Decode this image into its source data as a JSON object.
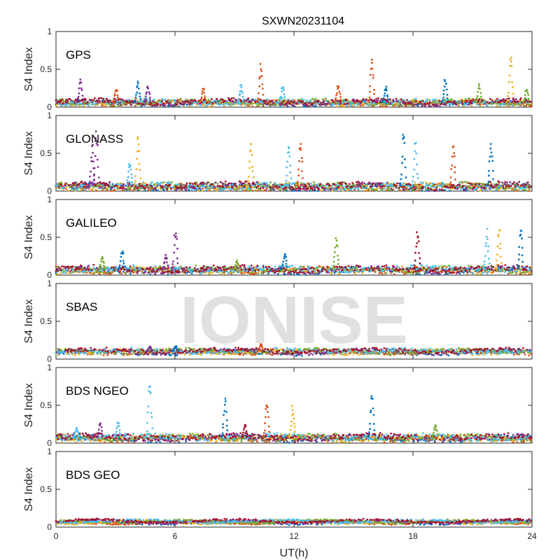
{
  "chart_data": {
    "type": "scatter",
    "title": "SXWN20231104",
    "xlabel": "UT(h)",
    "ylabel": "S4 Index",
    "xlim": [
      0,
      24
    ],
    "ylim": [
      0,
      1
    ],
    "xticks": [
      "0",
      "6",
      "12",
      "18",
      "24"
    ],
    "yticks": [
      "0",
      "0.5",
      "1"
    ],
    "grid": false,
    "watermark": "IONISE",
    "colors": [
      "#0072BD",
      "#D95319",
      "#EDB120",
      "#7E2F8E",
      "#77AC30",
      "#4DBEEE",
      "#A2142F"
    ],
    "panels": [
      {
        "label": "GPS",
        "baseline": 0.06,
        "noise": 0.03,
        "spikes": [
          {
            "x": 1.2,
            "peak": 0.38,
            "color": "#7E2F8E"
          },
          {
            "x": 3.0,
            "peak": 0.28,
            "color": "#D95319"
          },
          {
            "x": 4.1,
            "peak": 0.34,
            "color": "#0072BD"
          },
          {
            "x": 4.6,
            "peak": 0.28,
            "color": "#7E2F8E"
          },
          {
            "x": 7.4,
            "peak": 0.25,
            "color": "#D95319"
          },
          {
            "x": 9.3,
            "peak": 0.3,
            "color": "#4DBEEE"
          },
          {
            "x": 10.3,
            "peak": 0.6,
            "color": "#D95319"
          },
          {
            "x": 11.4,
            "peak": 0.3,
            "color": "#4DBEEE"
          },
          {
            "x": 14.2,
            "peak": 0.32,
            "color": "#D95319"
          },
          {
            "x": 15.9,
            "peak": 0.7,
            "color": "#D95319"
          },
          {
            "x": 16.6,
            "peak": 0.3,
            "color": "#0072BD"
          },
          {
            "x": 19.6,
            "peak": 0.4,
            "color": "#0072BD"
          },
          {
            "x": 21.3,
            "peak": 0.32,
            "color": "#77AC30"
          },
          {
            "x": 22.9,
            "peak": 0.72,
            "color": "#EDB120"
          },
          {
            "x": 23.7,
            "peak": 0.25,
            "color": "#77AC30"
          }
        ]
      },
      {
        "label": "GLONASS",
        "baseline": 0.06,
        "noise": 0.04,
        "spikes": [
          {
            "x": 1.8,
            "peak": 0.62,
            "color": "#7E2F8E"
          },
          {
            "x": 2.0,
            "peak": 0.82,
            "color": "#7E2F8E"
          },
          {
            "x": 3.7,
            "peak": 0.4,
            "color": "#4DBEEE"
          },
          {
            "x": 4.1,
            "peak": 0.75,
            "color": "#EDB120"
          },
          {
            "x": 9.8,
            "peak": 0.7,
            "color": "#EDB120"
          },
          {
            "x": 11.7,
            "peak": 0.7,
            "color": "#4DBEEE"
          },
          {
            "x": 12.3,
            "peak": 0.68,
            "color": "#D95319"
          },
          {
            "x": 17.5,
            "peak": 0.85,
            "color": "#0072BD"
          },
          {
            "x": 18.1,
            "peak": 0.7,
            "color": "#4DBEEE"
          },
          {
            "x": 20.0,
            "peak": 0.62,
            "color": "#D95319"
          },
          {
            "x": 21.9,
            "peak": 0.7,
            "color": "#0072BD"
          }
        ]
      },
      {
        "label": "GALILEO",
        "baseline": 0.07,
        "noise": 0.035,
        "spikes": [
          {
            "x": 2.3,
            "peak": 0.26,
            "color": "#77AC30"
          },
          {
            "x": 3.3,
            "peak": 0.36,
            "color": "#0072BD"
          },
          {
            "x": 5.5,
            "peak": 0.28,
            "color": "#7E2F8E"
          },
          {
            "x": 6.0,
            "peak": 0.65,
            "color": "#7E2F8E"
          },
          {
            "x": 9.1,
            "peak": 0.2,
            "color": "#77AC30"
          },
          {
            "x": 11.5,
            "peak": 0.3,
            "color": "#0072BD"
          },
          {
            "x": 14.1,
            "peak": 0.52,
            "color": "#77AC30"
          },
          {
            "x": 18.2,
            "peak": 0.62,
            "color": "#A2142F"
          },
          {
            "x": 21.7,
            "peak": 0.62,
            "color": "#4DBEEE"
          },
          {
            "x": 22.3,
            "peak": 0.66,
            "color": "#EDB120"
          },
          {
            "x": 23.4,
            "peak": 0.64,
            "color": "#0072BD"
          }
        ]
      },
      {
        "label": "SBAS",
        "baseline": 0.1,
        "noise": 0.025,
        "spikes": [
          {
            "x": 10.3,
            "peak": 0.22,
            "color": "#D95319"
          },
          {
            "x": 6.0,
            "peak": 0.18,
            "color": "#0072BD"
          },
          {
            "x": 4.7,
            "peak": 0.17,
            "color": "#7E2F8E"
          }
        ]
      },
      {
        "label": "BDS NGEO",
        "baseline": 0.07,
        "noise": 0.035,
        "spikes": [
          {
            "x": 1.0,
            "peak": 0.2,
            "color": "#4DBEEE"
          },
          {
            "x": 2.2,
            "peak": 0.28,
            "color": "#7E2F8E"
          },
          {
            "x": 3.1,
            "peak": 0.28,
            "color": "#4DBEEE"
          },
          {
            "x": 4.7,
            "peak": 0.88,
            "color": "#4DBEEE"
          },
          {
            "x": 8.5,
            "peak": 0.62,
            "color": "#0072BD"
          },
          {
            "x": 9.5,
            "peak": 0.28,
            "color": "#A2142F"
          },
          {
            "x": 10.6,
            "peak": 0.58,
            "color": "#D95319"
          },
          {
            "x": 11.9,
            "peak": 0.52,
            "color": "#EDB120"
          },
          {
            "x": 15.9,
            "peak": 0.64,
            "color": "#0072BD"
          },
          {
            "x": 19.1,
            "peak": 0.25,
            "color": "#77AC30"
          }
        ]
      },
      {
        "label": "BDS GEO",
        "baseline": 0.07,
        "noise": 0.012,
        "spikes": []
      }
    ]
  }
}
